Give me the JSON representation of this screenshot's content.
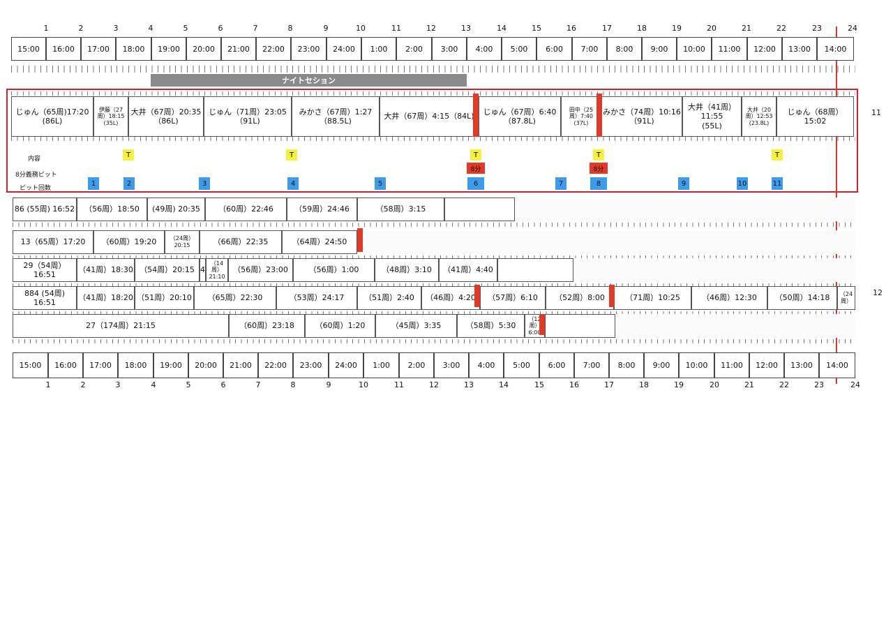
{
  "hours_top": [
    "1",
    "2",
    "3",
    "4",
    "5",
    "6",
    "7",
    "8",
    "9",
    "10",
    "11",
    "12",
    "13",
    "14",
    "15",
    "16",
    "17",
    "18",
    "19",
    "20",
    "21",
    "22",
    "23",
    "24"
  ],
  "hours_bottom": [
    "1",
    "2",
    "3",
    "4",
    "5",
    "6",
    "7",
    "8",
    "9",
    "10",
    "11",
    "12",
    "13",
    "14",
    "15",
    "16",
    "17",
    "18",
    "19",
    "20",
    "21",
    "22",
    "23",
    "24"
  ],
  "clock_top": [
    "15:00",
    "16:00",
    "17:00",
    "18:00",
    "19:00",
    "20:00",
    "21:00",
    "22:00",
    "23:00",
    "24:00",
    "1:00",
    "2:00",
    "3:00",
    "4:00",
    "5:00",
    "6:00",
    "7:00",
    "8:00",
    "9:00",
    "10:00",
    "11:00",
    "12:00",
    "13:00",
    "14:00"
  ],
  "clock_bottom": [
    "15:00",
    "16:00",
    "17:00",
    "18:00",
    "19:00",
    "20:00",
    "21:00",
    "22:00",
    "23:00",
    "24:00",
    "1:00",
    "2:00",
    "3:00",
    "4:00",
    "5:00",
    "6:00",
    "7:00",
    "8:00",
    "9:00",
    "10:00",
    "11:00",
    "12:00",
    "13:00",
    "14:00"
  ],
  "night_session": "ナイトセション",
  "highlight": {
    "stints": [
      "じゅん（65周)17:20\n(86L)",
      "伊藤（27\n周）18:15\n(35L)",
      "大井（67周）20:35（86L)",
      "じゅん（71周）23:05（91L)",
      "みかさ（67周）1:27（88.5L)",
      "大井（67周）4:15（84L)",
      "じゅん（67周）6:40（87.8L)",
      "田中（25\n周）7:40\n(37L)",
      "みかさ（74周）10:16（91L)",
      "大井（41周）11:55\n(55L)",
      "大井（20\n周）12:53\n(23.8L)",
      "じゅん（68周）15:02"
    ],
    "label_content": "内容",
    "label_mandatory": "8分義務ピット",
    "label_pitcount": "ピット回数",
    "t_label": "T",
    "mandatory_label": "8分",
    "pit_numbers": [
      "1",
      "2",
      "3",
      "4",
      "5",
      "6",
      "7",
      "8",
      "9",
      "10",
      "11"
    ],
    "side_number": "11"
  },
  "rows": [
    {
      "stints": [
        "86 (55周) 16:52",
        "（56周）18:50",
        "(49周) 20:35",
        "（60周）22:46",
        "（59周）24:46",
        "（58周）3:15",
        ""
      ]
    },
    {
      "stints": [
        "13（65周）17:20",
        "（60周）19:20",
        "（24周）\n20:15",
        "（66周）22:35",
        "（64周）24:50"
      ]
    },
    {
      "stints": [
        "29（54周）16:51",
        "（41周）18:30",
        "（54周）20:15",
        "4",
        "（14周）\n21:10",
        "（56周）23:00",
        "（56周）1:00",
        "（48周）3:10",
        "（41周）4:40",
        ""
      ]
    },
    {
      "stints": [
        "884 (54周) 16:51",
        "（41周）18:20",
        "（51周）20:10",
        "（65周）22:30",
        "（53周）24:17",
        "（51周）2:40",
        "（46周）4:20",
        "（57周）6:10",
        "（52周）8:00",
        "（71周）10:25",
        "（46周）12:30",
        "（50周）14:18",
        "（24\n周）"
      ],
      "side_number": "12"
    },
    {
      "stints": [
        "27（174周）21:15",
        "（60周）23:18",
        "（60周）1:20",
        "（45周）3:35",
        "（58周）5:30",
        "（12\n周）\n6:00",
        ""
      ]
    }
  ],
  "colors": {
    "frame": "#d0202a",
    "pit_red": "#e03a28",
    "yellow": "#f7f044",
    "blue": "#3d9be9",
    "night": "#8a8a8a",
    "vline": "#d33a2a"
  }
}
